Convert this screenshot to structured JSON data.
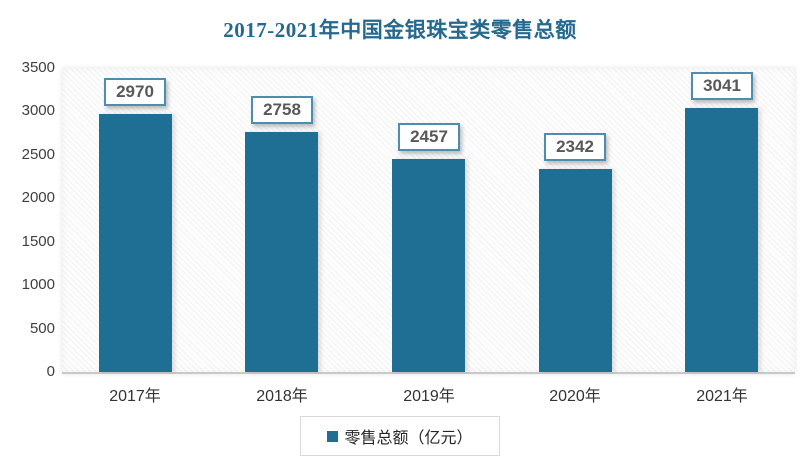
{
  "chart_data": {
    "type": "bar",
    "title": "2017-2021年中国金银珠宝类零售总额",
    "categories": [
      "2017年",
      "2018年",
      "2019年",
      "2020年",
      "2021年"
    ],
    "series": [
      {
        "name": "零售总额（亿元）",
        "values": [
          2970,
          2758,
          2457,
          2342,
          3041
        ]
      }
    ],
    "data_labels": [
      "2970",
      "2758",
      "2457",
      "2342",
      "3041"
    ],
    "xlabel": "",
    "ylabel": "",
    "ylim": [
      0,
      3500
    ],
    "y_ticks": [
      0,
      500,
      1000,
      1500,
      2000,
      2500,
      3000,
      3500
    ],
    "grid": false,
    "legend_position": "bottom",
    "colors": {
      "bar": "#1f6f94",
      "title": "#26698e",
      "label_box_border": "#4c8eac",
      "label_text": "#595959"
    }
  }
}
